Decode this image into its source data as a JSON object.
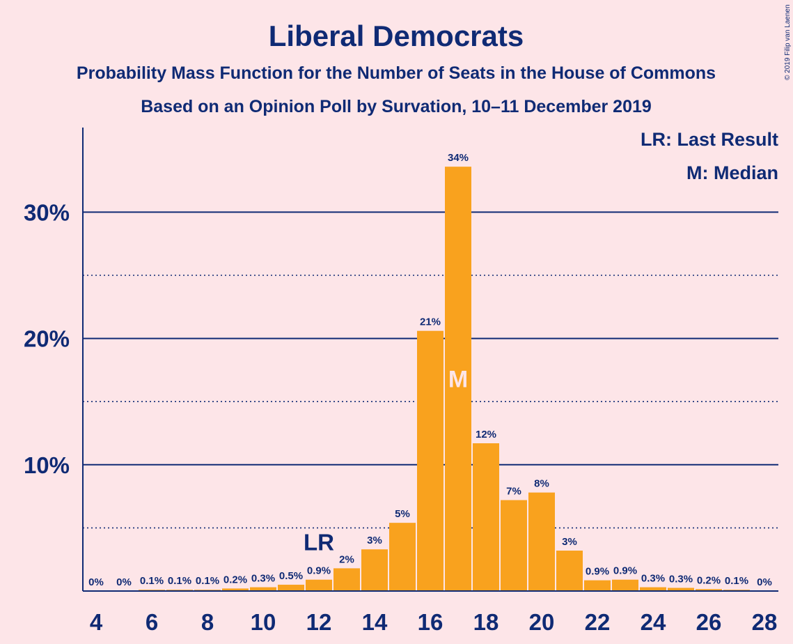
{
  "copyright": "© 2019 Filip van Laenen",
  "chart_data": {
    "type": "bar",
    "title": "Liberal Democrats",
    "subtitle_lines": [
      "Probability Mass Function for the Number of Seats in the House of Commons",
      "Based on an Opinion Poll by Survation, 10–11 December 2019"
    ],
    "legend": [
      "LR: Last Result",
      "M: Median"
    ],
    "legend_position": "top-right",
    "x": [
      4,
      5,
      6,
      7,
      8,
      9,
      10,
      11,
      12,
      13,
      14,
      15,
      16,
      17,
      18,
      19,
      20,
      21,
      22,
      23,
      24,
      25,
      26,
      27,
      28
    ],
    "values": [
      0,
      0,
      0.1,
      0.1,
      0.1,
      0.2,
      0.3,
      0.5,
      0.9,
      1.8,
      3.3,
      5.4,
      20.6,
      33.6,
      11.7,
      7.2,
      7.8,
      3.2,
      0.85,
      0.9,
      0.3,
      0.25,
      0.15,
      0.1,
      0
    ],
    "data_labels": [
      "0%",
      "0%",
      "0.1%",
      "0.1%",
      "0.1%",
      "0.2%",
      "0.3%",
      "0.5%",
      "0.9%",
      "2%",
      "3%",
      "5%",
      "21%",
      "34%",
      "12%",
      "7%",
      "8%",
      "3%",
      "0.9%",
      "0.9%",
      "0.3%",
      "0.3%",
      "0.2%",
      "0.1%",
      "0%"
    ],
    "x_ticks": [
      "4",
      "6",
      "8",
      "10",
      "12",
      "14",
      "16",
      "18",
      "20",
      "22",
      "24",
      "26",
      "28"
    ],
    "y_ticks": [
      {
        "value": 10,
        "label": "10%"
      },
      {
        "value": 20,
        "label": "20%"
      },
      {
        "value": 30,
        "label": "30%"
      }
    ],
    "y_minor_gridlines": [
      5,
      15,
      25
    ],
    "ylim": [
      0,
      36.7
    ],
    "last_result": {
      "x": 12,
      "label": "LR"
    },
    "median": {
      "x": 17,
      "label": "M"
    },
    "colors": {
      "bar": "#F9A21E",
      "text": "#0F2A74",
      "background": "#FDE5E8"
    }
  }
}
